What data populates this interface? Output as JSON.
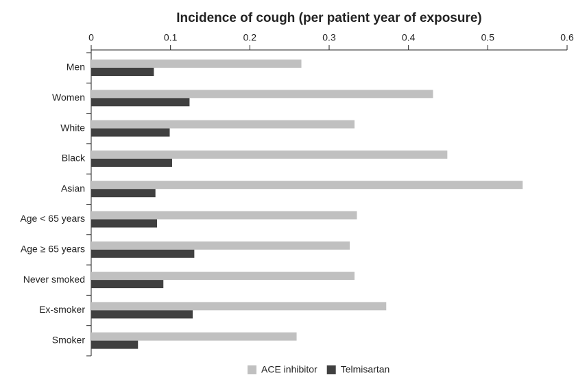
{
  "chart_data": {
    "type": "bar",
    "orientation": "horizontal",
    "title": "Incidence of cough (per patient year of exposure)",
    "categories": [
      "Men",
      "Women",
      "White",
      "Black",
      "Asian",
      "Age < 65 years",
      "Age ≥ 65 years",
      "Never smoked",
      "Ex-smoker",
      "Smoker"
    ],
    "series": [
      {
        "name": "ACE inhibitor",
        "color": "#c0c0c0",
        "values": [
          0.265,
          0.431,
          0.332,
          0.449,
          0.544,
          0.335,
          0.326,
          0.332,
          0.372,
          0.259
        ]
      },
      {
        "name": "Telmisartan",
        "color": "#404040",
        "values": [
          0.079,
          0.124,
          0.099,
          0.102,
          0.081,
          0.083,
          0.13,
          0.091,
          0.128,
          0.059
        ]
      }
    ],
    "xlim": [
      0,
      0.6
    ],
    "xticks": [
      0,
      0.1,
      0.2,
      0.3,
      0.4,
      0.5,
      0.6
    ],
    "legend": "bottom"
  }
}
